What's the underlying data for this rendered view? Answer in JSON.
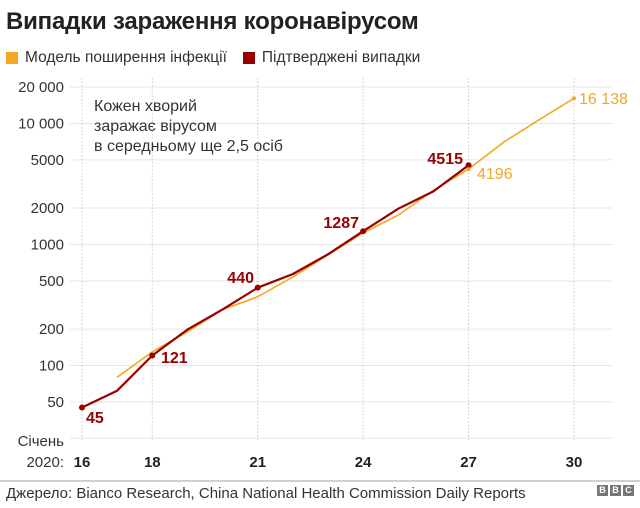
{
  "title": "Випадки зараження коронавірусом",
  "legend": [
    {
      "label": "Модель поширення інфекції",
      "color": "#f5a623"
    },
    {
      "label": "Підтверджені випадки",
      "color": "#990000"
    }
  ],
  "annotation": [
    "Кожен хворий",
    "заражає вірусом",
    "в середньому ще 2,5 осіб"
  ],
  "x_axis": {
    "prefix_line1": "Січень",
    "prefix_line2": "2020:",
    "ticks": [
      "16",
      "18",
      "21",
      "24",
      "27",
      "30"
    ]
  },
  "y_axis": {
    "ticks": [
      "20 000",
      "10 000",
      "5000",
      "2000",
      "1000",
      "500",
      "200",
      "100",
      "50"
    ]
  },
  "labels": {
    "c16": "45",
    "c18": "121",
    "c21": "440",
    "c24": "1287",
    "c27": "4515",
    "m27": "4196",
    "m30": "16 138"
  },
  "footer": {
    "source": "Джерело: Bianco Research, China National Health Commission Daily Reports",
    "logo": [
      "B",
      "B",
      "C"
    ]
  },
  "colors": {
    "model": "#f5a623",
    "confirmed": "#990000",
    "grid": "#e6e6e6"
  },
  "chart_data": {
    "type": "line",
    "title": "Випадки зараження коронавірусом",
    "xlabel": "Січень 2020",
    "ylabel": "",
    "yscale": "log",
    "ylim": [
      30,
      20000
    ],
    "x_ticks": [
      16,
      18,
      21,
      24,
      27,
      30
    ],
    "y_ticks": [
      50,
      100,
      200,
      500,
      1000,
      2000,
      5000,
      10000,
      20000
    ],
    "grid": true,
    "legend_position": "top",
    "series": [
      {
        "name": "Модель поширення інфекції",
        "color": "#f5a623",
        "x": [
          17,
          18,
          19,
          20,
          21,
          22,
          23,
          24,
          25,
          26,
          27,
          28,
          29,
          30
        ],
        "values": [
          80,
          130,
          190,
          290,
          370,
          540,
          820,
          1250,
          1750,
          2800,
          4196,
          7000,
          10700,
          16138
        ]
      },
      {
        "name": "Підтверджені випадки",
        "color": "#990000",
        "x": [
          16,
          17,
          18,
          19,
          20,
          21,
          22,
          23,
          24,
          25,
          26,
          27
        ],
        "values": [
          45,
          62,
          121,
          198,
          291,
          440,
          571,
          830,
          1287,
          1975,
          2744,
          4515
        ]
      }
    ],
    "annotations": [
      {
        "text": "Кожен хворий заражає вірусом в середньому ще 2,5 осіб",
        "position": "top-left"
      },
      {
        "text": "45",
        "x": 16,
        "y": 45
      },
      {
        "text": "121",
        "x": 18,
        "y": 121
      },
      {
        "text": "440",
        "x": 21,
        "y": 440
      },
      {
        "text": "1287",
        "x": 24,
        "y": 1287
      },
      {
        "text": "4515",
        "x": 27,
        "y": 4515
      },
      {
        "text": "4196",
        "x": 27,
        "y": 4196
      },
      {
        "text": "16 138",
        "x": 30,
        "y": 16138
      }
    ]
  }
}
